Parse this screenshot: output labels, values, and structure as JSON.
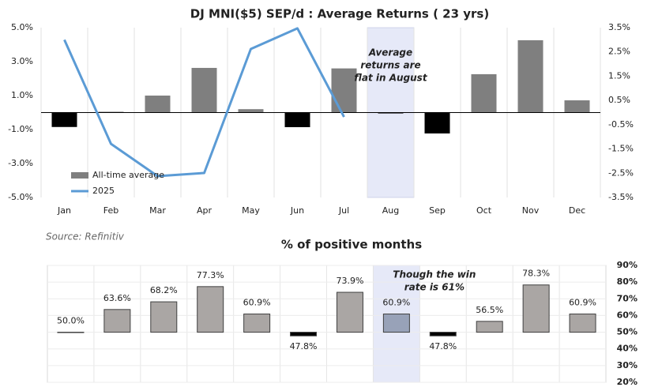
{
  "chart_data": [
    {
      "type": "bar_line",
      "title": "DJ MNI($5) SEP/d : Average Returns ( 23 yrs)",
      "categories": [
        "Jan",
        "Feb",
        "Mar",
        "Apr",
        "May",
        "Jun",
        "Jul",
        "Aug",
        "Sep",
        "Oct",
        "Nov",
        "Dec"
      ],
      "series": [
        {
          "name": "All-time average",
          "type": "bar",
          "color": "#7f7f7f",
          "negative_color": "#000000",
          "values": [
            -0.85,
            0.05,
            1.0,
            2.63,
            0.2,
            -0.86,
            2.6,
            -0.05,
            -1.23,
            2.26,
            4.26,
            0.72
          ]
        },
        {
          "name": "2025",
          "type": "line",
          "color": "#5b9bd5",
          "axis": "y2",
          "values": [
            3.0,
            -1.29,
            -2.62,
            -2.49,
            2.62,
            3.47,
            -0.18,
            null,
            null,
            null,
            null,
            null
          ]
        }
      ],
      "ylim": [
        -5,
        5
      ],
      "yticks": [
        {
          "value": -5,
          "label": "-5.0%"
        },
        {
          "value": -3,
          "label": "-3.0%"
        },
        {
          "value": -1,
          "label": "-1.0%"
        },
        {
          "value": 1,
          "label": "1.0%"
        },
        {
          "value": 3,
          "label": "3.0%"
        },
        {
          "value": 5,
          "label": "5.0%"
        }
      ],
      "y2lim": [
        -3.5,
        3.5
      ],
      "y2ticks": [
        {
          "value": -3.5,
          "label": "-3.5%"
        },
        {
          "value": -2.5,
          "label": "-2.5%"
        },
        {
          "value": -1.5,
          "label": "-1.5%"
        },
        {
          "value": -0.5,
          "label": "-0.5%"
        },
        {
          "value": 0.5,
          "label": "0.5%"
        },
        {
          "value": 1.5,
          "label": "1.5%"
        },
        {
          "value": 2.5,
          "label": "2.5%"
        },
        {
          "value": 3.5,
          "label": "3.5%"
        }
      ],
      "ytick_color": "#1f4e79",
      "negative_tick_color": "#c00000",
      "highlight": "Aug",
      "highlight_color": "#e6e9f8",
      "annotation": [
        "Average",
        "returns are",
        "flat in August"
      ],
      "legend": "lower left",
      "source": "Source: Refinitiv"
    },
    {
      "type": "bar",
      "title": "% of positive months",
      "values": [
        50.0,
        63.6,
        68.2,
        77.3,
        60.9,
        47.8,
        73.9,
        60.9,
        47.8,
        56.5,
        78.3,
        60.9
      ],
      "value_labels": [
        "50.0%",
        "63.6%",
        "68.2%",
        "77.3%",
        "60.9%",
        "47.8%",
        "73.9%",
        "60.9%",
        "47.8%",
        "56.5%",
        "78.3%",
        "60.9%"
      ],
      "baseline": 50,
      "color": "#aaa6a4",
      "below_color": "#000000",
      "highlight_bar_color": "#98a2b8",
      "ylim": [
        20,
        90
      ],
      "yticks": [
        {
          "value": 20,
          "label": "20%"
        },
        {
          "value": 30,
          "label": "30%"
        },
        {
          "value": 40,
          "label": "40%"
        },
        {
          "value": 50,
          "label": "50%"
        },
        {
          "value": 60,
          "label": "60%"
        },
        {
          "value": 70,
          "label": "70%"
        },
        {
          "value": 80,
          "label": "80%"
        },
        {
          "value": 90,
          "label": "90%"
        }
      ],
      "ytick_color": "#1f3864",
      "label_color": "#1f3864",
      "highlight_index": 7,
      "highlight_color": "#e6e9f8",
      "annotation": [
        "Though the win",
        "rate is 61%"
      ],
      "grid": true
    }
  ]
}
